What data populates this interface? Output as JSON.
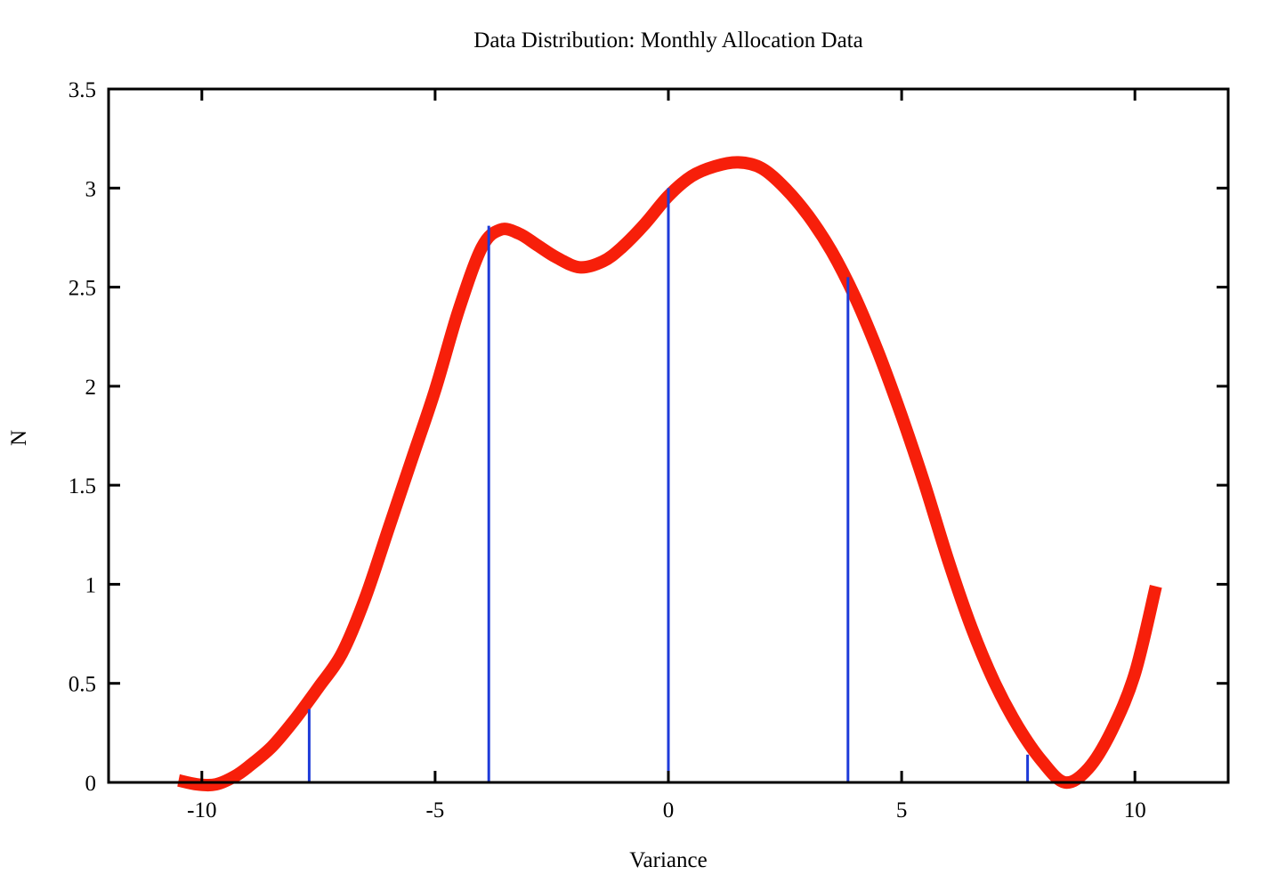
{
  "figure": {
    "title": "Data Distribution: Monthly Allocation Data",
    "xlabel": "Variance",
    "ylabel": "N",
    "background_color": "#ffffff",
    "text_color": "#000000"
  },
  "chart_data": {
    "type": "line",
    "title": "Data Distribution: Monthly Allocation Data",
    "xlabel": "Variance",
    "ylabel": "N",
    "xlim": [
      -12,
      12
    ],
    "ylim": [
      0,
      3.5
    ],
    "grid": false,
    "legend": "none",
    "border_style": "box-with-inward-mirrored-ticks",
    "axis_color": "#000000",
    "axis_stroke_width": 3,
    "tick_length": 13,
    "x_ticks": {
      "values": [
        -10,
        -5,
        0,
        5,
        10
      ],
      "labels": [
        "-10",
        "-5",
        "0",
        "5",
        "10"
      ]
    },
    "y_ticks": {
      "values": [
        0,
        0.5,
        1,
        1.5,
        2,
        2.5,
        3,
        3.5
      ],
      "labels": [
        "0",
        "0.5",
        "1",
        "1.5",
        "2",
        "2.5",
        "3",
        "3.5"
      ]
    },
    "series": [
      {
        "name": "smoothed-density-curve",
        "type": "smooth-line",
        "color": "#f71f0a",
        "stroke_width": 14,
        "points": [
          [
            -10.5,
            0.01
          ],
          [
            -10.1,
            -0.01
          ],
          [
            -9.7,
            -0.01
          ],
          [
            -9.3,
            0.03
          ],
          [
            -9.0,
            0.08
          ],
          [
            -8.5,
            0.18
          ],
          [
            -8.0,
            0.32
          ],
          [
            -7.5,
            0.48
          ],
          [
            -7.0,
            0.65
          ],
          [
            -6.5,
            0.93
          ],
          [
            -6.0,
            1.28
          ],
          [
            -5.5,
            1.63
          ],
          [
            -5.0,
            1.98
          ],
          [
            -4.5,
            2.38
          ],
          [
            -4.0,
            2.7
          ],
          [
            -3.6,
            2.79
          ],
          [
            -3.2,
            2.77
          ],
          [
            -2.8,
            2.71
          ],
          [
            -2.4,
            2.65
          ],
          [
            -1.9,
            2.6
          ],
          [
            -1.4,
            2.63
          ],
          [
            -1.0,
            2.7
          ],
          [
            -0.5,
            2.82
          ],
          [
            0.0,
            2.96
          ],
          [
            0.5,
            3.06
          ],
          [
            1.0,
            3.11
          ],
          [
            1.5,
            3.13
          ],
          [
            2.0,
            3.1
          ],
          [
            2.5,
            3.0
          ],
          [
            3.0,
            2.86
          ],
          [
            3.5,
            2.68
          ],
          [
            4.0,
            2.45
          ],
          [
            4.5,
            2.17
          ],
          [
            5.0,
            1.85
          ],
          [
            5.5,
            1.5
          ],
          [
            6.0,
            1.12
          ],
          [
            6.5,
            0.78
          ],
          [
            7.0,
            0.5
          ],
          [
            7.5,
            0.28
          ],
          [
            8.0,
            0.11
          ],
          [
            8.5,
            0.0
          ],
          [
            9.0,
            0.07
          ],
          [
            9.5,
            0.26
          ],
          [
            10.0,
            0.55
          ],
          [
            10.45,
            0.99
          ]
        ]
      },
      {
        "name": "data-impulses",
        "type": "impulses",
        "color": "#1e3bd9",
        "stroke_width": 3,
        "points": [
          [
            -7.7,
            0.37
          ],
          [
            -3.85,
            2.81
          ],
          [
            0.0,
            3.0
          ],
          [
            3.85,
            2.55
          ],
          [
            7.7,
            0.14
          ]
        ]
      }
    ]
  }
}
